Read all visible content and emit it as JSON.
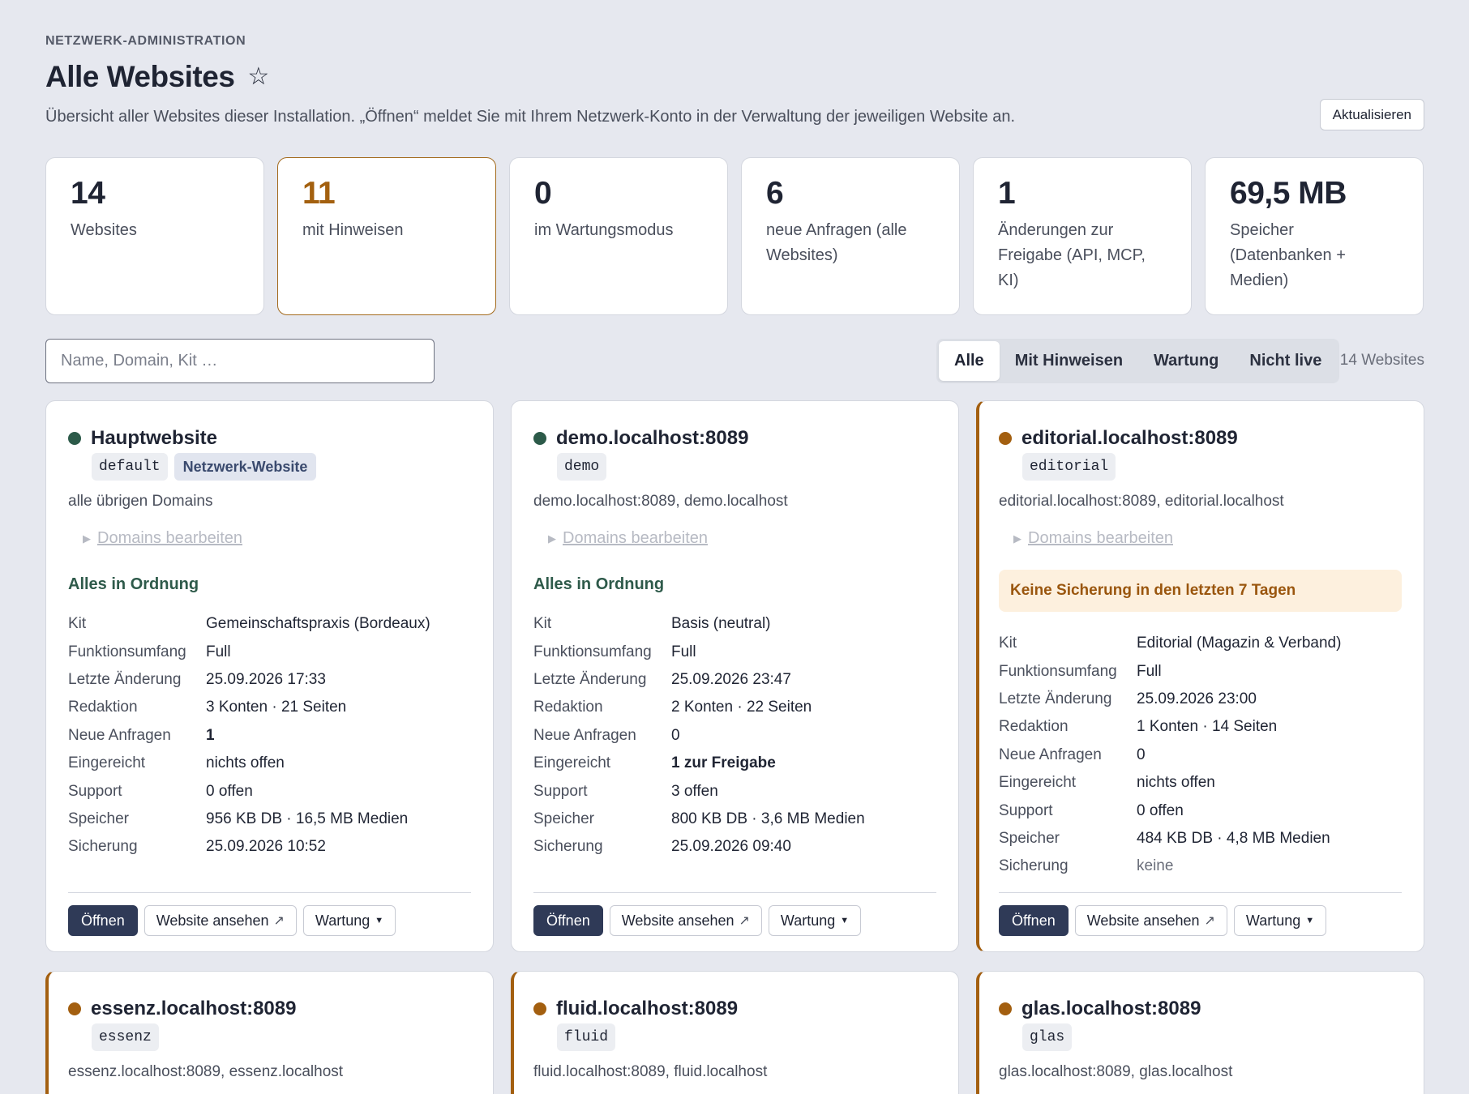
{
  "header": {
    "eyebrow": "NETZWERK-ADMINISTRATION",
    "title": "Alle Websites",
    "subtitle": "Übersicht aller Websites dieser Installation. „Öffnen“ meldet Sie mit Ihrem Netzwerk-Konto in der Verwaltung der jeweiligen Website an.",
    "refresh_label": "Aktualisieren"
  },
  "stats": [
    {
      "value": "14",
      "label": "Websites"
    },
    {
      "value": "11",
      "label": "mit Hinweisen"
    },
    {
      "value": "0",
      "label": "im Wartungsmodus"
    },
    {
      "value": "6",
      "label": "neue Anfragen (alle Websites)"
    },
    {
      "value": "1",
      "label": "Änderungen zur Freigabe (API, MCP, KI)"
    },
    {
      "value": "69,5 MB",
      "label": "Speicher (Datenbanken + Medien)"
    }
  ],
  "search": {
    "placeholder": "Name, Domain, Kit …",
    "value": ""
  },
  "filters": [
    "Alle",
    "Mit Hinweisen",
    "Wartung",
    "Nicht live"
  ],
  "active_filter": "Alle",
  "site_count": "14 Websites",
  "labels": {
    "kit": "Kit",
    "scope": "Funktionsumfang",
    "last_change": "Letzte Änderung",
    "editorial": "Redaktion",
    "new_requests": "Neue Anfragen",
    "submitted": "Eingereicht",
    "support": "Support",
    "storage": "Speicher",
    "backup": "Sicherung",
    "edit_domains": "Domains bearbeiten",
    "open": "Öffnen",
    "view_site": "Website ansehen",
    "maintenance": "Wartung"
  },
  "sites": [
    {
      "name": "Hauptwebsite",
      "slug": "default",
      "network_tag": "Netzwerk-Website",
      "domains": "alle übrigen Domains",
      "status": "Alles in Ordnung",
      "kit": "Gemeinschaftspraxis (Bordeaux)",
      "scope": "Full",
      "last_change": "25.09.2026 17:33",
      "editorial": "3 Konten · 21 Seiten",
      "new_requests": "1",
      "submitted": "nichts offen",
      "support": "0 offen",
      "storage": "956 KB DB · 16,5 MB Medien",
      "backup": "25.09.2026 10:52"
    },
    {
      "name": "demo.localhost:8089",
      "slug": "demo",
      "domains": "demo.localhost:8089, demo.localhost",
      "status": "Alles in Ordnung",
      "kit": "Basis (neutral)",
      "scope": "Full",
      "last_change": "25.09.2026 23:47",
      "editorial": "2 Konten · 22 Seiten",
      "new_requests": "0",
      "submitted": "1 zur Freigabe",
      "support": "3 offen",
      "storage": "800 KB DB · 3,6 MB Medien",
      "backup": "25.09.2026 09:40"
    },
    {
      "name": "editorial.localhost:8089",
      "slug": "editorial",
      "domains": "editorial.localhost:8089, editorial.localhost",
      "alert": "Keine Sicherung in den letzten 7 Tagen",
      "kit": "Editorial (Magazin & Verband)",
      "scope": "Full",
      "last_change": "25.09.2026 23:00",
      "editorial": "1 Konten · 14 Seiten",
      "new_requests": "0",
      "submitted": "nichts offen",
      "support": "0 offen",
      "storage": "484 KB DB · 4,8 MB Medien",
      "backup": "keine"
    },
    {
      "name": "essenz.localhost:8089",
      "slug": "essenz",
      "domains": "essenz.localhost:8089, essenz.localhost"
    },
    {
      "name": "fluid.localhost:8089",
      "slug": "fluid",
      "domains": "fluid.localhost:8089, fluid.localhost"
    },
    {
      "name": "glas.localhost:8089",
      "slug": "glas",
      "domains": "glas.localhost:8089, glas.localhost"
    }
  ],
  "colors": {
    "ok": "#2c5a49",
    "warn": "#a35f10",
    "primary": "#2f3a57",
    "background": "#e6e8ef"
  }
}
